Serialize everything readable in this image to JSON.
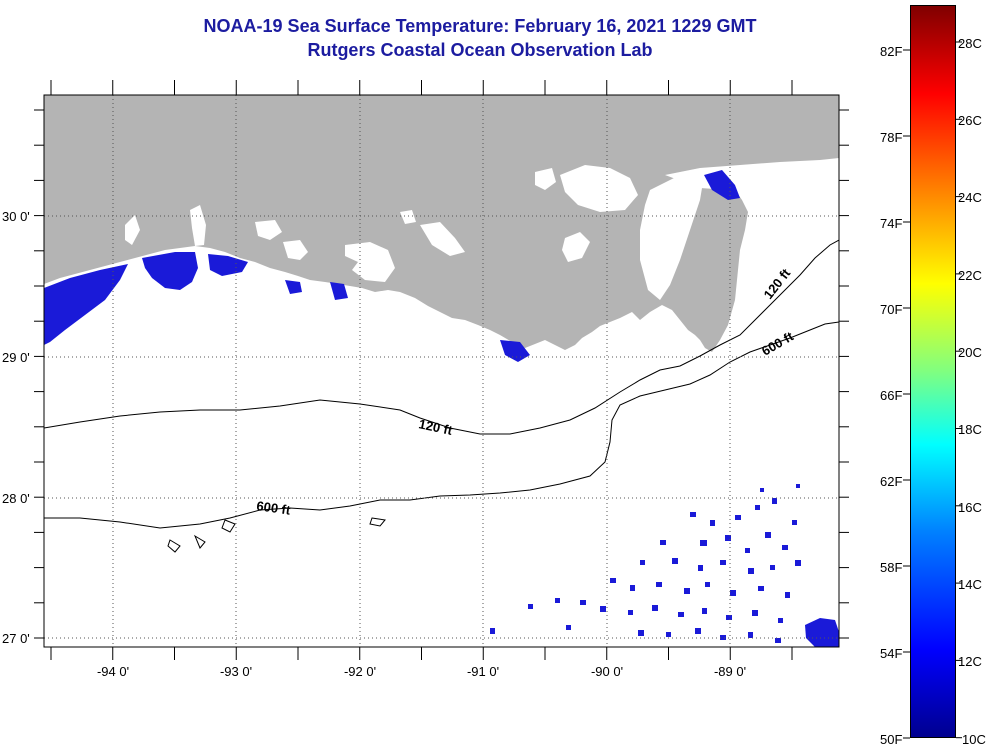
{
  "title": {
    "line1": "NOAA-19 Sea Surface Temperature:  February 16, 2021 1229 GMT",
    "line2": "Rutgers Coastal Ocean Observation Lab"
  },
  "map": {
    "longitude_labels": [
      "-94 0'",
      "-93 0'",
      "-92 0'",
      "-91 0'",
      "-90 0'",
      "-89 0'"
    ],
    "latitude_labels": [
      "30 0'",
      "29 0'",
      "28 0'",
      "27 0'"
    ],
    "contour_labels": [
      "120 ft",
      "600 ft",
      "120 ft",
      "600 ft"
    ],
    "colors": {
      "land": "#b4b4b4",
      "cold_water": "#1a1ad8",
      "background": "#ffffff"
    }
  },
  "colorbar": {
    "fahrenheit_labels": [
      "82F",
      "78F",
      "74F",
      "70F",
      "66F",
      "62F",
      "58F",
      "54F",
      "50F"
    ],
    "celsius_labels": [
      "28C",
      "26C",
      "24C",
      "22C",
      "20C",
      "18C",
      "16C",
      "14C",
      "12C",
      "10C"
    ],
    "range_f": [
      50,
      84
    ],
    "range_c": [
      10,
      29
    ]
  }
}
